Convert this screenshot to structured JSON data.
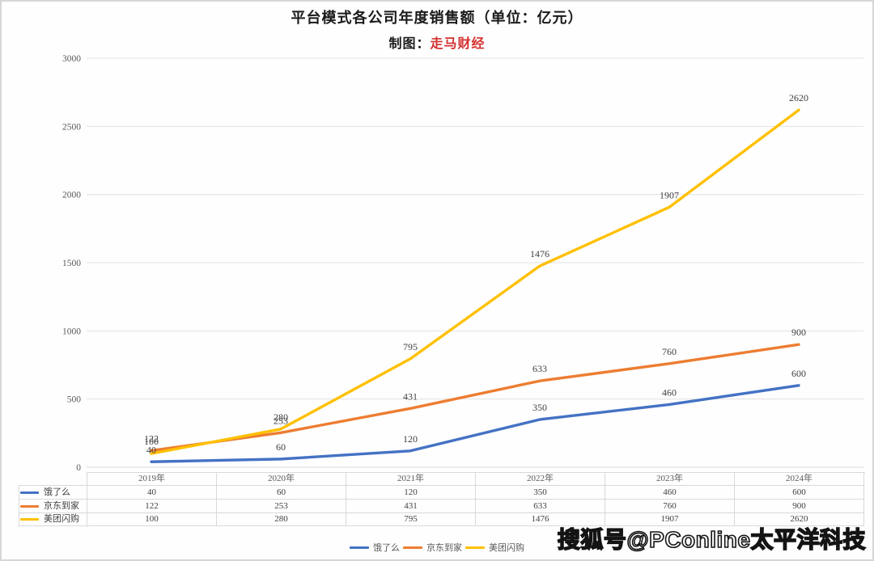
{
  "title": "平台模式各公司年度销售额（单位：亿元）",
  "subtitle": {
    "label": "制图：",
    "author": "走马财经"
  },
  "watermark": "搜狐号@PConline太平洋科技",
  "colors": {
    "eleme": "#4472C4",
    "jddj": "#ED7D31",
    "mtsg": "#FFC000",
    "grid": "#E3E3E3",
    "axis_zero": "#D9D9D9",
    "table_border": "#D9D9D9",
    "axis_text": "#595959",
    "label_text": "#3F3F3F",
    "author_red": "#D43030"
  },
  "chart_data": {
    "type": "line",
    "title": "平台模式各公司年度销售额（单位：亿元）",
    "categories": [
      "2019年",
      "2020年",
      "2021年",
      "2022年",
      "2023年",
      "2024年"
    ],
    "series": [
      {
        "name": "饿了么",
        "color_key": "eleme",
        "values": [
          40,
          60,
          120,
          350,
          460,
          600
        ]
      },
      {
        "name": "京东到家",
        "color_key": "jddj",
        "values": [
          122,
          253,
          431,
          633,
          760,
          900
        ]
      },
      {
        "name": "美团闪购",
        "color_key": "mtsg",
        "values": [
          100,
          280,
          795,
          1476,
          1907,
          2620
        ]
      }
    ],
    "ylim": [
      0,
      3000
    ],
    "yticks": [
      0,
      500,
      1000,
      1500,
      2000,
      2500,
      3000
    ],
    "grid": true,
    "data_labels": true,
    "data_table": true,
    "legend_position": "bottom"
  }
}
